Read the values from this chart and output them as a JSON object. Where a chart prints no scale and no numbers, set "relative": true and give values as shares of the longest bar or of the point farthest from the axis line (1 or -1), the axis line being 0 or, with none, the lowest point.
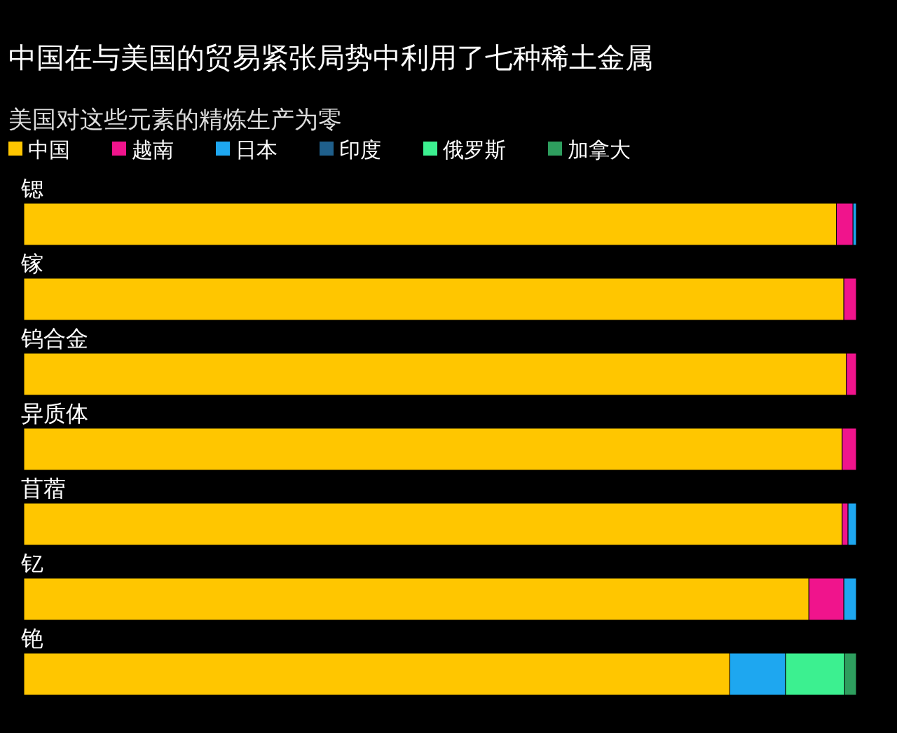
{
  "chart_data": {
    "type": "bar",
    "orientation": "horizontal",
    "stacked": true,
    "relative": true,
    "legend": "top left",
    "title": "中国在与美国的贸易紧张局势中利用了七种稀土金属",
    "subtitle": "美国对这些元素的精炼生产为零",
    "categories": [
      "锶",
      "镓",
      "钨合金",
      "异质体",
      "苜蓿",
      "钇",
      "铯"
    ],
    "series": [
      {
        "name": "中国",
        "color": "#ffc600",
        "values": [
          0.976,
          0.985,
          0.988,
          0.983,
          0.983,
          0.943,
          0.848
        ]
      },
      {
        "name": "越南",
        "color": "#f0148c",
        "values": [
          0.02,
          0.015,
          0.012,
          0.017,
          0.007,
          0.042,
          null
        ]
      },
      {
        "name": "日本",
        "color": "#1ea7f0",
        "values": [
          0.004,
          null,
          null,
          null,
          0.01,
          0.015,
          0.067
        ]
      },
      {
        "name": "印度",
        "color": "#1f5f8b",
        "values": [
          null,
          null,
          null,
          null,
          null,
          null,
          null
        ]
      },
      {
        "name": "俄罗斯",
        "color": "#3cf090",
        "values": [
          null,
          null,
          null,
          null,
          null,
          null,
          0.071
        ]
      },
      {
        "name": "加拿大",
        "color": "#2e9e5e",
        "values": [
          null,
          null,
          null,
          null,
          null,
          null,
          0.014
        ]
      }
    ]
  }
}
